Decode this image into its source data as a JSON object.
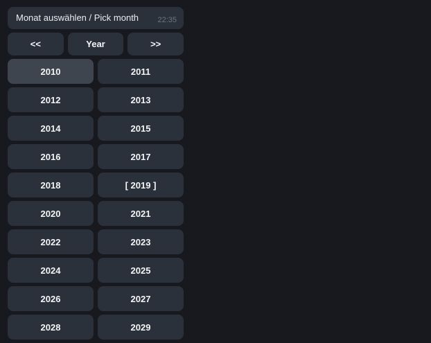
{
  "message": {
    "text": "Monat auswählen / Pick month",
    "time": "22:35"
  },
  "keyboard": {
    "nav": [
      {
        "label": "<<"
      },
      {
        "label": "Year"
      },
      {
        "label": ">>"
      }
    ],
    "years": [
      {
        "label": "2010",
        "highlighted": true
      },
      {
        "label": "2011"
      },
      {
        "label": "2012"
      },
      {
        "label": "2013"
      },
      {
        "label": "2014"
      },
      {
        "label": "2015"
      },
      {
        "label": "2016"
      },
      {
        "label": "2017"
      },
      {
        "label": "2018"
      },
      {
        "label": "[ 2019 ]",
        "selected": true
      },
      {
        "label": "2020"
      },
      {
        "label": "2021"
      },
      {
        "label": "2022"
      },
      {
        "label": "2023"
      },
      {
        "label": "2024"
      },
      {
        "label": "2025"
      },
      {
        "label": "2026"
      },
      {
        "label": "2027"
      },
      {
        "label": "2028"
      },
      {
        "label": "2029"
      }
    ]
  },
  "colors": {
    "background": "#17191f",
    "bubble": "#2b313a",
    "button": "#2b313a",
    "button_highlight": "#3f454e",
    "text": "#e9edf0",
    "button_text": "#f3f5f7",
    "timestamp": "#6b7682"
  }
}
